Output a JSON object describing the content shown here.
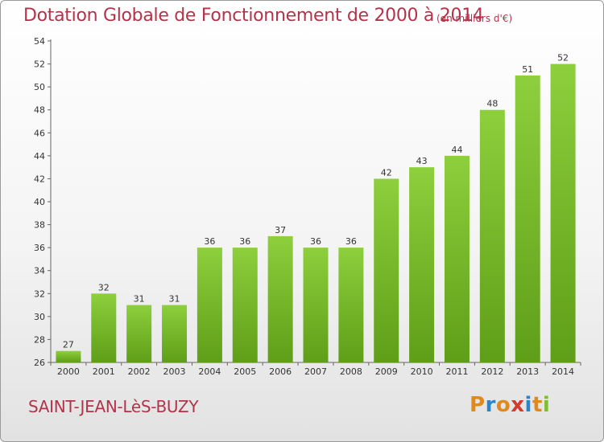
{
  "chart_data": {
    "type": "bar",
    "title": "Dotation Globale de Fonctionnement de 2000 à 2014",
    "subtitle": "(en milliers d'€)",
    "categories": [
      "2000",
      "2001",
      "2002",
      "2003",
      "2004",
      "2005",
      "2006",
      "2007",
      "2008",
      "2009",
      "2010",
      "2011",
      "2012",
      "2013",
      "2014"
    ],
    "values": [
      27,
      32,
      31,
      31,
      36,
      36,
      37,
      36,
      36,
      42,
      43,
      44,
      48,
      51,
      52
    ],
    "ylim": [
      26,
      54
    ],
    "yticks": [
      26,
      28,
      30,
      32,
      34,
      36,
      38,
      40,
      42,
      44,
      46,
      48,
      50,
      52,
      54
    ],
    "grid": false,
    "bar_color": "#7fbf2e"
  },
  "commune": "SAINT-JEAN-LèS-BUZY",
  "logo": {
    "letters": [
      "P",
      "r",
      "o",
      "x",
      "i",
      "t",
      "i"
    ],
    "colors": [
      "#e08a1e",
      "#2a86c8",
      "#e08a1e",
      "#d23b2b",
      "#2a86c8",
      "#e08a1e",
      "#7fbf2e"
    ]
  }
}
